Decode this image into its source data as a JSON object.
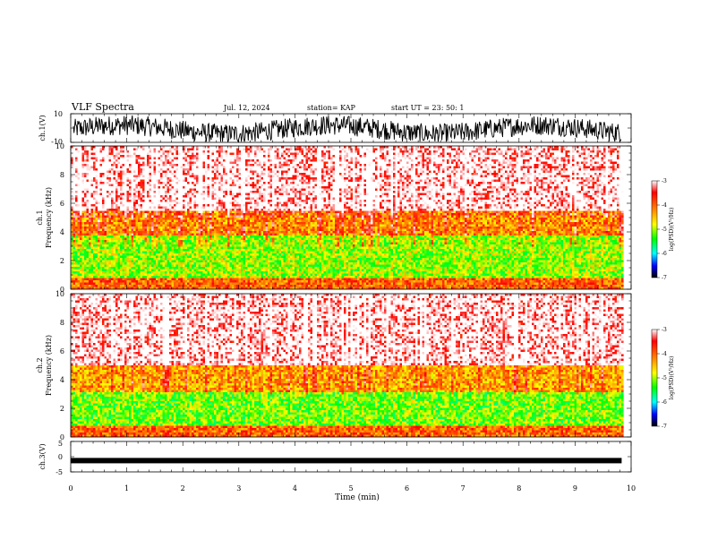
{
  "header": {
    "title": "VLF Spectra",
    "date": "Jul. 12, 2024",
    "station": "station= KAP",
    "start": "start UT = 23: 50: 1"
  },
  "chart_data": [
    {
      "type": "line",
      "panel": "waveform-ch1",
      "ylabel": "ch.1(V)",
      "yticks": [
        "10",
        "-10"
      ],
      "ylim": [
        -10,
        10
      ],
      "xlim": [
        0,
        10
      ],
      "series_color": "#000000"
    },
    {
      "type": "heatmap",
      "panel": "spectrogram-ch1",
      "ylabel_line1": "ch.1",
      "ylabel_line2": "Frequency (kHz)",
      "ylim": [
        0,
        10
      ],
      "yticks": [
        "0",
        "2",
        "4",
        "6",
        "8",
        "10"
      ],
      "xlim": [
        0,
        9.83
      ],
      "colorbar": {
        "label": "log(PSD)(V²/Hz)",
        "range": [
          -7,
          -3
        ],
        "ticks": [
          "-3",
          "-4",
          "-5",
          "-6",
          "-7"
        ]
      },
      "bands_kHz": [
        {
          "from": 0.0,
          "to": 0.8,
          "level": -3.8
        },
        {
          "from": 0.8,
          "to": 3.8,
          "level": -4.7
        },
        {
          "from": 3.8,
          "to": 5.5,
          "level": -4.0
        },
        {
          "from": 5.5,
          "to": 10.0,
          "level": -3.1
        }
      ]
    },
    {
      "type": "heatmap",
      "panel": "spectrogram-ch2",
      "ylabel_line1": "ch.2",
      "ylabel_line2": "Frequency (kHz)",
      "ylim": [
        0,
        10
      ],
      "yticks": [
        "0",
        "2",
        "4",
        "6",
        "8",
        "10"
      ],
      "xlim": [
        0,
        9.83
      ],
      "colorbar": {
        "label": "log(PSD)(V²/Hz)",
        "range": [
          -7,
          -3
        ],
        "ticks": [
          "-3",
          "-4",
          "-5",
          "-6",
          "-7"
        ]
      },
      "bands_kHz": [
        {
          "from": 0.0,
          "to": 0.8,
          "level": -3.8
        },
        {
          "from": 0.8,
          "to": 3.2,
          "level": -4.8
        },
        {
          "from": 3.2,
          "to": 5.0,
          "level": -4.1
        },
        {
          "from": 5.0,
          "to": 10.0,
          "level": -3.1
        }
      ]
    },
    {
      "type": "line",
      "panel": "waveform-ch3",
      "ylabel": "ch.3(V)",
      "yticks": [
        "5",
        "0",
        "-5"
      ],
      "ylim": [
        -5,
        5
      ],
      "xlim": [
        0,
        10
      ],
      "xlabel": "Time (min)",
      "xticks": [
        "0",
        "1",
        "2",
        "3",
        "4",
        "5",
        "6",
        "7",
        "8",
        "9",
        "10"
      ],
      "level": -1.3,
      "series_color": "#000000"
    }
  ]
}
